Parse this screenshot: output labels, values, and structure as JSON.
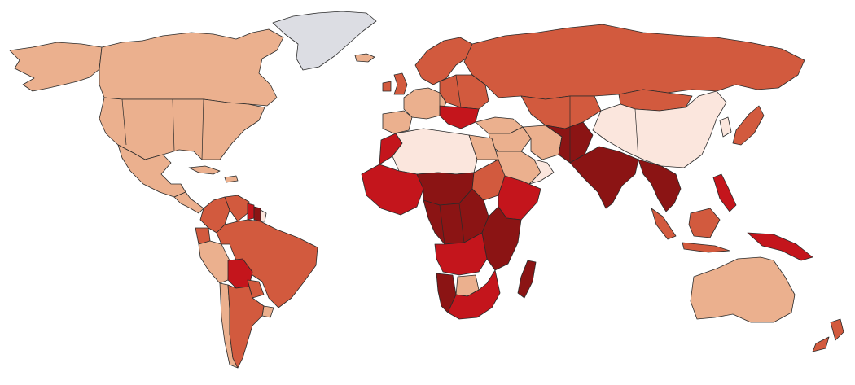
{
  "map": {
    "type": "choropleth-world",
    "legend": null,
    "colors": {
      "no_data": "#dcdde3",
      "class_1": "#fbe6dd",
      "class_2": "#ebb08e",
      "class_3": "#d25a3e",
      "class_4": "#c4151c",
      "class_5": "#8b1414",
      "ocean": "#ffffff",
      "border": "#2a2a2a"
    },
    "regions": [
      {
        "name": "alaska",
        "class": "class_2"
      },
      {
        "name": "canada",
        "class": "class_2"
      },
      {
        "name": "greenland",
        "class": "no_data"
      },
      {
        "name": "usa",
        "class": "class_2"
      },
      {
        "name": "mexico",
        "class": "class_2"
      },
      {
        "name": "central-america",
        "class": "class_2"
      },
      {
        "name": "caribbean",
        "class": "class_2"
      },
      {
        "name": "iceland",
        "class": "class_2"
      },
      {
        "name": "colombia",
        "class": "class_3"
      },
      {
        "name": "venezuela",
        "class": "class_3"
      },
      {
        "name": "guyana",
        "class": "class_4"
      },
      {
        "name": "suriname",
        "class": "class_5"
      },
      {
        "name": "french-guiana",
        "class": "class_1"
      },
      {
        "name": "ecuador",
        "class": "class_3"
      },
      {
        "name": "peru",
        "class": "class_2"
      },
      {
        "name": "brazil",
        "class": "class_3"
      },
      {
        "name": "bolivia",
        "class": "class_4"
      },
      {
        "name": "paraguay",
        "class": "class_3"
      },
      {
        "name": "uruguay",
        "class": "class_2"
      },
      {
        "name": "chile",
        "class": "class_2"
      },
      {
        "name": "argentina",
        "class": "class_3"
      },
      {
        "name": "western-europe",
        "class": "class_2"
      },
      {
        "name": "uk",
        "class": "class_3"
      },
      {
        "name": "ireland",
        "class": "class_3"
      },
      {
        "name": "iberia",
        "class": "class_2"
      },
      {
        "name": "scandinavia",
        "class": "class_3"
      },
      {
        "name": "eastern-europe",
        "class": "class_3"
      },
      {
        "name": "balkans",
        "class": "class_4"
      },
      {
        "name": "russia",
        "class": "class_3"
      },
      {
        "name": "turkey",
        "class": "class_2"
      },
      {
        "name": "central-asia",
        "class": "class_3"
      },
      {
        "name": "middle-east",
        "class": "class_2"
      },
      {
        "name": "arabian-peninsula",
        "class": "class_2"
      },
      {
        "name": "oman-uae",
        "class": "class_1"
      },
      {
        "name": "iran",
        "class": "class_2"
      },
      {
        "name": "afghanistan-pakistan",
        "class": "class_5"
      },
      {
        "name": "india",
        "class": "class_5"
      },
      {
        "name": "china",
        "class": "class_1"
      },
      {
        "name": "mongolia",
        "class": "class_3"
      },
      {
        "name": "korea",
        "class": "class_1"
      },
      {
        "name": "japan",
        "class": "class_3"
      },
      {
        "name": "southeast-asia",
        "class": "class_5"
      },
      {
        "name": "malaysia-indonesia",
        "class": "class_3"
      },
      {
        "name": "philippines",
        "class": "class_4"
      },
      {
        "name": "papua",
        "class": "class_4"
      },
      {
        "name": "australia",
        "class": "class_2"
      },
      {
        "name": "new-zealand",
        "class": "class_3"
      },
      {
        "name": "north-africa",
        "class": "class_1"
      },
      {
        "name": "morocco",
        "class": "class_4"
      },
      {
        "name": "egypt",
        "class": "class_2"
      },
      {
        "name": "west-africa",
        "class": "class_4"
      },
      {
        "name": "sahel",
        "class": "class_5"
      },
      {
        "name": "sudan",
        "class": "class_3"
      },
      {
        "name": "ethiopia-horn",
        "class": "class_4"
      },
      {
        "name": "central-africa",
        "class": "class_5"
      },
      {
        "name": "east-africa",
        "class": "class_5"
      },
      {
        "name": "angola-zambia",
        "class": "class_4"
      },
      {
        "name": "namibia",
        "class": "class_5"
      },
      {
        "name": "botswana",
        "class": "class_2"
      },
      {
        "name": "south-africa",
        "class": "class_4"
      },
      {
        "name": "madagascar",
        "class": "class_5"
      }
    ]
  }
}
